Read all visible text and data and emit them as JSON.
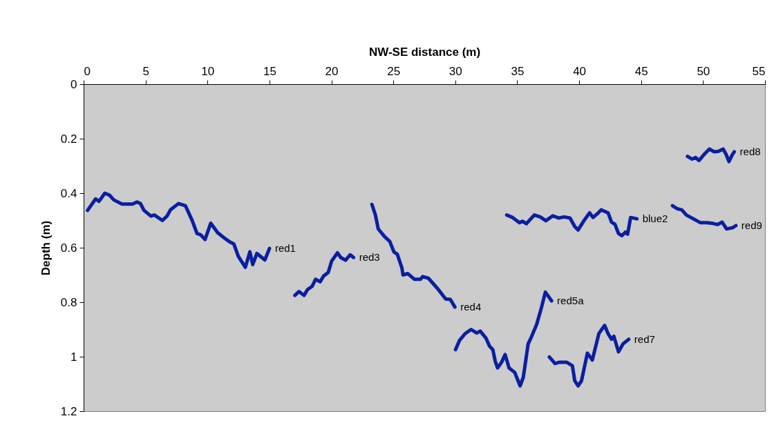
{
  "chart_data": {
    "type": "line",
    "xlabel": "NW-SE distance (m)",
    "ylabel": "Depth (m)",
    "xlim": [
      0,
      55
    ],
    "xticks": [
      0,
      5,
      10,
      15,
      20,
      25,
      30,
      35,
      40,
      45,
      50,
      55
    ],
    "ylim": [
      1.2,
      0
    ],
    "yticks": [
      0,
      0.2,
      0.4,
      0.6,
      0.8,
      1,
      1.2
    ],
    "grid": false,
    "marker": "none",
    "line_style": "solid",
    "series": [
      {
        "name": "red1",
        "color": "#0a1fa0",
        "x": [
          0.32,
          0.97,
          1.24,
          1.71,
          2.08,
          2.45,
          3.1,
          3.94,
          4.31,
          4.59,
          4.87,
          5.43,
          5.71,
          6.36,
          6.73,
          7.01,
          7.66,
          8.22,
          8.77,
          9.15,
          9.43,
          9.8,
          10.26,
          10.82,
          11.38,
          11.84,
          12.12,
          12.49,
          13.05,
          13.42,
          13.65,
          13.98,
          14.63,
          15.0
        ],
        "values": [
          0.463,
          0.421,
          0.43,
          0.4,
          0.407,
          0.425,
          0.44,
          0.44,
          0.432,
          0.438,
          0.463,
          0.484,
          0.48,
          0.5,
          0.484,
          0.461,
          0.438,
          0.446,
          0.501,
          0.548,
          0.552,
          0.57,
          0.51,
          0.545,
          0.565,
          0.58,
          0.586,
          0.632,
          0.672,
          0.615,
          0.662,
          0.621,
          0.645,
          0.603
        ]
      },
      {
        "name": "red3",
        "color": "#0a1fa0",
        "x": [
          17.05,
          17.38,
          17.79,
          18.07,
          18.44,
          18.72,
          19.09,
          19.37,
          19.74,
          20.02,
          20.49,
          20.76,
          21.14,
          21.51,
          21.79
        ],
        "values": [
          0.775,
          0.761,
          0.775,
          0.754,
          0.742,
          0.716,
          0.725,
          0.704,
          0.691,
          0.649,
          0.619,
          0.636,
          0.646,
          0.626,
          0.636
        ]
      },
      {
        "name": "red4",
        "color": "#0a1fa0",
        "x": [
          23.27,
          23.55,
          23.78,
          24.3,
          24.71,
          25.04,
          25.32,
          25.69,
          25.78,
          26.16,
          26.71,
          27.18,
          27.37,
          27.83,
          28.57,
          29.22,
          29.6,
          29.97
        ],
        "values": [
          0.441,
          0.48,
          0.531,
          0.56,
          0.577,
          0.615,
          0.624,
          0.674,
          0.7,
          0.695,
          0.716,
          0.716,
          0.706,
          0.712,
          0.75,
          0.788,
          0.79,
          0.818
        ]
      },
      {
        "name": "red5a",
        "color": "#0a1fa0",
        "x": [
          30.02,
          30.34,
          30.8,
          31.27,
          31.73,
          32.01,
          32.48,
          32.76,
          33.03,
          33.22,
          33.41,
          33.74,
          34.02,
          34.34,
          34.8,
          35.23,
          35.49,
          35.88,
          36.1,
          36.57,
          36.94,
          37.27,
          37.77
        ],
        "values": [
          0.974,
          0.94,
          0.915,
          0.9,
          0.913,
          0.906,
          0.932,
          0.961,
          0.974,
          1.016,
          1.041,
          1.02,
          0.992,
          1.041,
          1.058,
          1.107,
          1.075,
          0.953,
          0.932,
          0.881,
          0.822,
          0.763,
          0.795
        ]
      },
      {
        "name": "red7",
        "color": "#0a1fa0",
        "x": [
          37.59,
          38.05,
          38.42,
          38.98,
          39.45,
          39.64,
          39.91,
          40.19,
          40.66,
          41.06,
          41.59,
          42.05,
          42.33,
          42.61,
          42.8,
          43.17,
          43.54,
          44.0
        ],
        "values": [
          1.001,
          1.025,
          1.02,
          1.02,
          1.033,
          1.088,
          1.107,
          1.088,
          0.987,
          1.012,
          0.915,
          0.885,
          0.915,
          0.936,
          0.925,
          0.982,
          0.953,
          0.936
        ]
      },
      {
        "name": "blue2",
        "color": "#0a1fa0",
        "x": [
          34.15,
          34.62,
          35.18,
          35.45,
          35.73,
          36.38,
          36.85,
          37.31,
          37.87,
          38.33,
          38.8,
          39.26,
          39.64,
          39.91,
          40.38,
          40.84,
          41.12,
          41.5,
          41.77,
          42.33,
          42.61,
          42.89,
          43.17,
          43.45,
          43.73,
          43.91,
          44.15,
          44.66
        ],
        "values": [
          0.48,
          0.489,
          0.508,
          0.503,
          0.512,
          0.48,
          0.487,
          0.501,
          0.483,
          0.491,
          0.487,
          0.491,
          0.522,
          0.535,
          0.501,
          0.472,
          0.489,
          0.474,
          0.461,
          0.472,
          0.506,
          0.514,
          0.548,
          0.556,
          0.543,
          0.55,
          0.489,
          0.494
        ]
      },
      {
        "name": "red8",
        "color": "#0a1fa0",
        "x": [
          48.74,
          49.12,
          49.39,
          49.67,
          50.14,
          50.51,
          50.88,
          51.25,
          51.62,
          51.85,
          52.09,
          52.33,
          52.52
        ],
        "values": [
          0.265,
          0.275,
          0.269,
          0.28,
          0.255,
          0.238,
          0.248,
          0.246,
          0.238,
          0.257,
          0.284,
          0.261,
          0.248
        ]
      },
      {
        "name": "red9",
        "color": "#0a1fa0",
        "x": [
          47.53,
          47.91,
          48.28,
          48.65,
          49.21,
          49.77,
          50.32,
          50.79,
          51.16,
          51.53,
          51.9,
          52.37,
          52.65
        ],
        "values": [
          0.446,
          0.457,
          0.461,
          0.48,
          0.494,
          0.508,
          0.508,
          0.511,
          0.515,
          0.506,
          0.531,
          0.527,
          0.519
        ]
      }
    ]
  }
}
